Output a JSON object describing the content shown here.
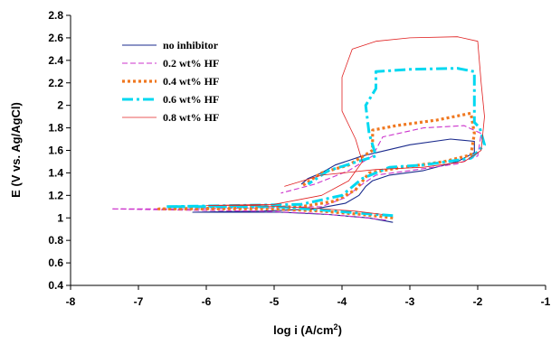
{
  "chart_data": {
    "type": "line",
    "title": "",
    "xlabel": "log i (A/cm",
    "xlabel_sup": "2",
    "xlabel_close": ")",
    "ylabel": "E (V vs. Ag/AgCl)",
    "xlim": [
      -8,
      -1
    ],
    "ylim": [
      0.4,
      2.8
    ],
    "x_ticks": [
      "-8",
      "-7",
      "-6",
      "-5",
      "-4",
      "-3",
      "-2",
      "-1"
    ],
    "y_ticks": [
      "0.4",
      "0.6",
      "0.8",
      "1",
      "1.2",
      "1.4",
      "1.6",
      "1.8",
      "2",
      "2.2",
      "2.4",
      "2.6",
      "2.8"
    ],
    "grid": false,
    "legend_position": "top-left",
    "series": [
      {
        "name": "no inhibitor",
        "color": "#1a2a8c",
        "style": "solid",
        "points": [
          [
            -3.25,
            0.96
          ],
          [
            -3.6,
            1.0
          ],
          [
            -4.2,
            1.03
          ],
          [
            -4.9,
            1.05
          ],
          [
            -6.0,
            1.05
          ],
          [
            -6.2,
            1.05
          ],
          [
            -5.2,
            1.06
          ],
          [
            -4.4,
            1.08
          ],
          [
            -3.95,
            1.13
          ],
          [
            -3.75,
            1.2
          ],
          [
            -3.65,
            1.28
          ],
          [
            -3.55,
            1.33
          ],
          [
            -3.3,
            1.38
          ],
          [
            -2.8,
            1.42
          ],
          [
            -2.3,
            1.5
          ],
          [
            -2.05,
            1.58
          ],
          [
            -2.05,
            1.68
          ],
          [
            -2.4,
            1.7
          ],
          [
            -3.0,
            1.65
          ],
          [
            -3.7,
            1.55
          ],
          [
            -4.1,
            1.47
          ],
          [
            -4.3,
            1.4
          ],
          [
            -4.5,
            1.35
          ],
          [
            -4.6,
            1.3
          ]
        ]
      },
      {
        "name": "0.2 wt% HF",
        "color": "#cc33cc",
        "style": "dashed",
        "points": [
          [
            -3.35,
            0.98
          ],
          [
            -3.8,
            1.01
          ],
          [
            -4.4,
            1.04
          ],
          [
            -5.2,
            1.06
          ],
          [
            -6.5,
            1.07
          ],
          [
            -7.4,
            1.08
          ],
          [
            -6.3,
            1.08
          ],
          [
            -5.0,
            1.09
          ],
          [
            -4.3,
            1.1
          ],
          [
            -3.95,
            1.18
          ],
          [
            -3.7,
            1.3
          ],
          [
            -3.5,
            1.38
          ],
          [
            -3.0,
            1.42
          ],
          [
            -2.3,
            1.48
          ],
          [
            -2.0,
            1.55
          ],
          [
            -1.95,
            1.75
          ],
          [
            -2.2,
            1.82
          ],
          [
            -2.8,
            1.8
          ],
          [
            -3.4,
            1.72
          ],
          [
            -3.55,
            1.55
          ],
          [
            -3.9,
            1.42
          ],
          [
            -4.4,
            1.3
          ],
          [
            -4.9,
            1.22
          ]
        ]
      },
      {
        "name": "0.4 wt% HF",
        "color": "#f07820",
        "style": "dotted",
        "points": [
          [
            -3.25,
            1.0
          ],
          [
            -3.7,
            1.03
          ],
          [
            -4.3,
            1.06
          ],
          [
            -5.0,
            1.08
          ],
          [
            -6.0,
            1.08
          ],
          [
            -6.7,
            1.08
          ],
          [
            -5.5,
            1.09
          ],
          [
            -4.6,
            1.1
          ],
          [
            -4.1,
            1.15
          ],
          [
            -3.8,
            1.25
          ],
          [
            -3.6,
            1.4
          ],
          [
            -3.1,
            1.45
          ],
          [
            -2.5,
            1.5
          ],
          [
            -2.1,
            1.56
          ],
          [
            -2.05,
            1.75
          ],
          [
            -2.1,
            1.93
          ],
          [
            -2.6,
            1.87
          ],
          [
            -3.2,
            1.82
          ],
          [
            -3.55,
            1.78
          ],
          [
            -3.55,
            1.6
          ],
          [
            -3.9,
            1.47
          ],
          [
            -4.3,
            1.4
          ],
          [
            -4.6,
            1.28
          ]
        ]
      },
      {
        "name": "0.6 wt% HF",
        "color": "#00d8f0",
        "style": "dashdot",
        "points": [
          [
            -3.25,
            1.02
          ],
          [
            -3.7,
            1.04
          ],
          [
            -4.3,
            1.07
          ],
          [
            -5.0,
            1.1
          ],
          [
            -6.2,
            1.1
          ],
          [
            -6.6,
            1.1
          ],
          [
            -5.5,
            1.11
          ],
          [
            -4.6,
            1.12
          ],
          [
            -4.0,
            1.2
          ],
          [
            -3.7,
            1.35
          ],
          [
            -3.3,
            1.45
          ],
          [
            -2.8,
            1.47
          ],
          [
            -2.1,
            1.53
          ],
          [
            -1.9,
            1.65
          ],
          [
            -1.97,
            1.8
          ],
          [
            -2.05,
            1.85
          ],
          [
            -2.05,
            2.3
          ],
          [
            -2.3,
            2.33
          ],
          [
            -3.0,
            2.32
          ],
          [
            -3.5,
            2.3
          ],
          [
            -3.5,
            2.15
          ],
          [
            -3.65,
            2.0
          ],
          [
            -3.6,
            1.75
          ],
          [
            -3.5,
            1.55
          ],
          [
            -4.2,
            1.42
          ],
          [
            -4.5,
            1.3
          ]
        ]
      },
      {
        "name": "0.8 wt% HF",
        "color": "#e02020",
        "style": "thin",
        "points": [
          [
            -3.4,
            1.03
          ],
          [
            -3.8,
            1.06
          ],
          [
            -4.5,
            1.09
          ],
          [
            -5.3,
            1.11
          ],
          [
            -6.0,
            1.11
          ],
          [
            -5.0,
            1.12
          ],
          [
            -4.3,
            1.2
          ],
          [
            -3.9,
            1.33
          ],
          [
            -3.7,
            1.5
          ],
          [
            -3.8,
            1.7
          ],
          [
            -4.0,
            1.95
          ],
          [
            -4.0,
            2.25
          ],
          [
            -3.85,
            2.5
          ],
          [
            -3.5,
            2.57
          ],
          [
            -3.0,
            2.6
          ],
          [
            -2.3,
            2.61
          ],
          [
            -2.0,
            2.57
          ],
          [
            -1.95,
            2.2
          ],
          [
            -1.9,
            1.9
          ],
          [
            -1.95,
            1.6
          ],
          [
            -2.2,
            1.5
          ],
          [
            -2.8,
            1.45
          ],
          [
            -3.5,
            1.43
          ],
          [
            -4.3,
            1.38
          ],
          [
            -4.85,
            1.28
          ]
        ]
      }
    ]
  }
}
